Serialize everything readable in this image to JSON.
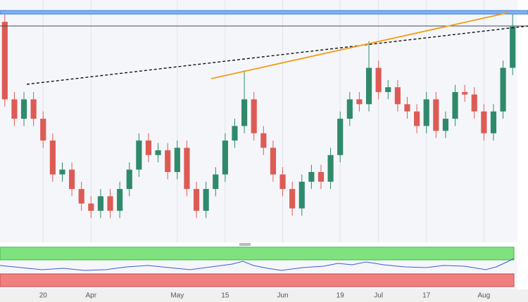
{
  "chart_data": {
    "type": "candlestick",
    "categories": [
      null,
      null,
      null,
      null,
      "20",
      null,
      null,
      null,
      null,
      "Apr",
      null,
      null,
      null,
      null,
      null,
      null,
      null,
      null,
      "May",
      null,
      null,
      null,
      null,
      "15",
      null,
      null,
      null,
      null,
      null,
      "Jun",
      null,
      null,
      null,
      null,
      null,
      "19",
      null,
      null,
      null,
      "Jul",
      null,
      null,
      null,
      null,
      "17",
      null,
      null,
      null,
      null,
      null,
      "Aug",
      null,
      null,
      null
    ],
    "open": [
      91,
      59,
      51,
      59,
      51,
      42,
      28,
      30,
      22,
      16,
      13,
      19,
      13,
      22,
      30,
      42,
      36,
      38,
      29,
      39,
      22,
      13,
      22,
      28,
      42,
      48,
      59,
      45,
      39,
      28,
      22,
      14,
      25,
      29,
      25,
      36,
      51,
      59,
      57,
      72,
      62,
      64,
      57,
      54,
      48,
      59,
      46,
      51,
      62,
      61,
      54,
      45,
      54,
      72
    ],
    "high": [
      94,
      62,
      62,
      62,
      54,
      45,
      33,
      33,
      25,
      19,
      22,
      22,
      25,
      33,
      45,
      45,
      41,
      41,
      42,
      42,
      25,
      25,
      31,
      45,
      51,
      71,
      62,
      48,
      42,
      31,
      25,
      28,
      32,
      32,
      39,
      54,
      62,
      62,
      83,
      75,
      67,
      67,
      60,
      57,
      62,
      62,
      54,
      65,
      65,
      64,
      57,
      57,
      75,
      94
    ],
    "low": [
      56,
      48,
      48,
      48,
      39,
      25,
      25,
      19,
      13,
      10,
      10,
      10,
      10,
      19,
      27,
      33,
      33,
      26,
      26,
      19,
      10,
      10,
      19,
      25,
      39,
      45,
      42,
      36,
      25,
      19,
      11,
      11,
      22,
      22,
      22,
      33,
      48,
      54,
      54,
      59,
      59,
      54,
      51,
      45,
      45,
      43,
      43,
      48,
      58,
      51,
      42,
      42,
      51,
      69
    ],
    "close": [
      59,
      51,
      59,
      51,
      42,
      28,
      30,
      22,
      16,
      13,
      19,
      13,
      22,
      30,
      42,
      36,
      38,
      29,
      39,
      22,
      13,
      22,
      28,
      42,
      48,
      59,
      45,
      39,
      28,
      22,
      14,
      25,
      29,
      25,
      36,
      51,
      59,
      57,
      72,
      62,
      64,
      57,
      54,
      48,
      59,
      46,
      51,
      62,
      61,
      54,
      45,
      54,
      72,
      89
    ],
    "up_color": "#2f8a6b",
    "down_color": "#de5b55",
    "ylim": [
      0,
      100
    ],
    "grid": true
  }
}
